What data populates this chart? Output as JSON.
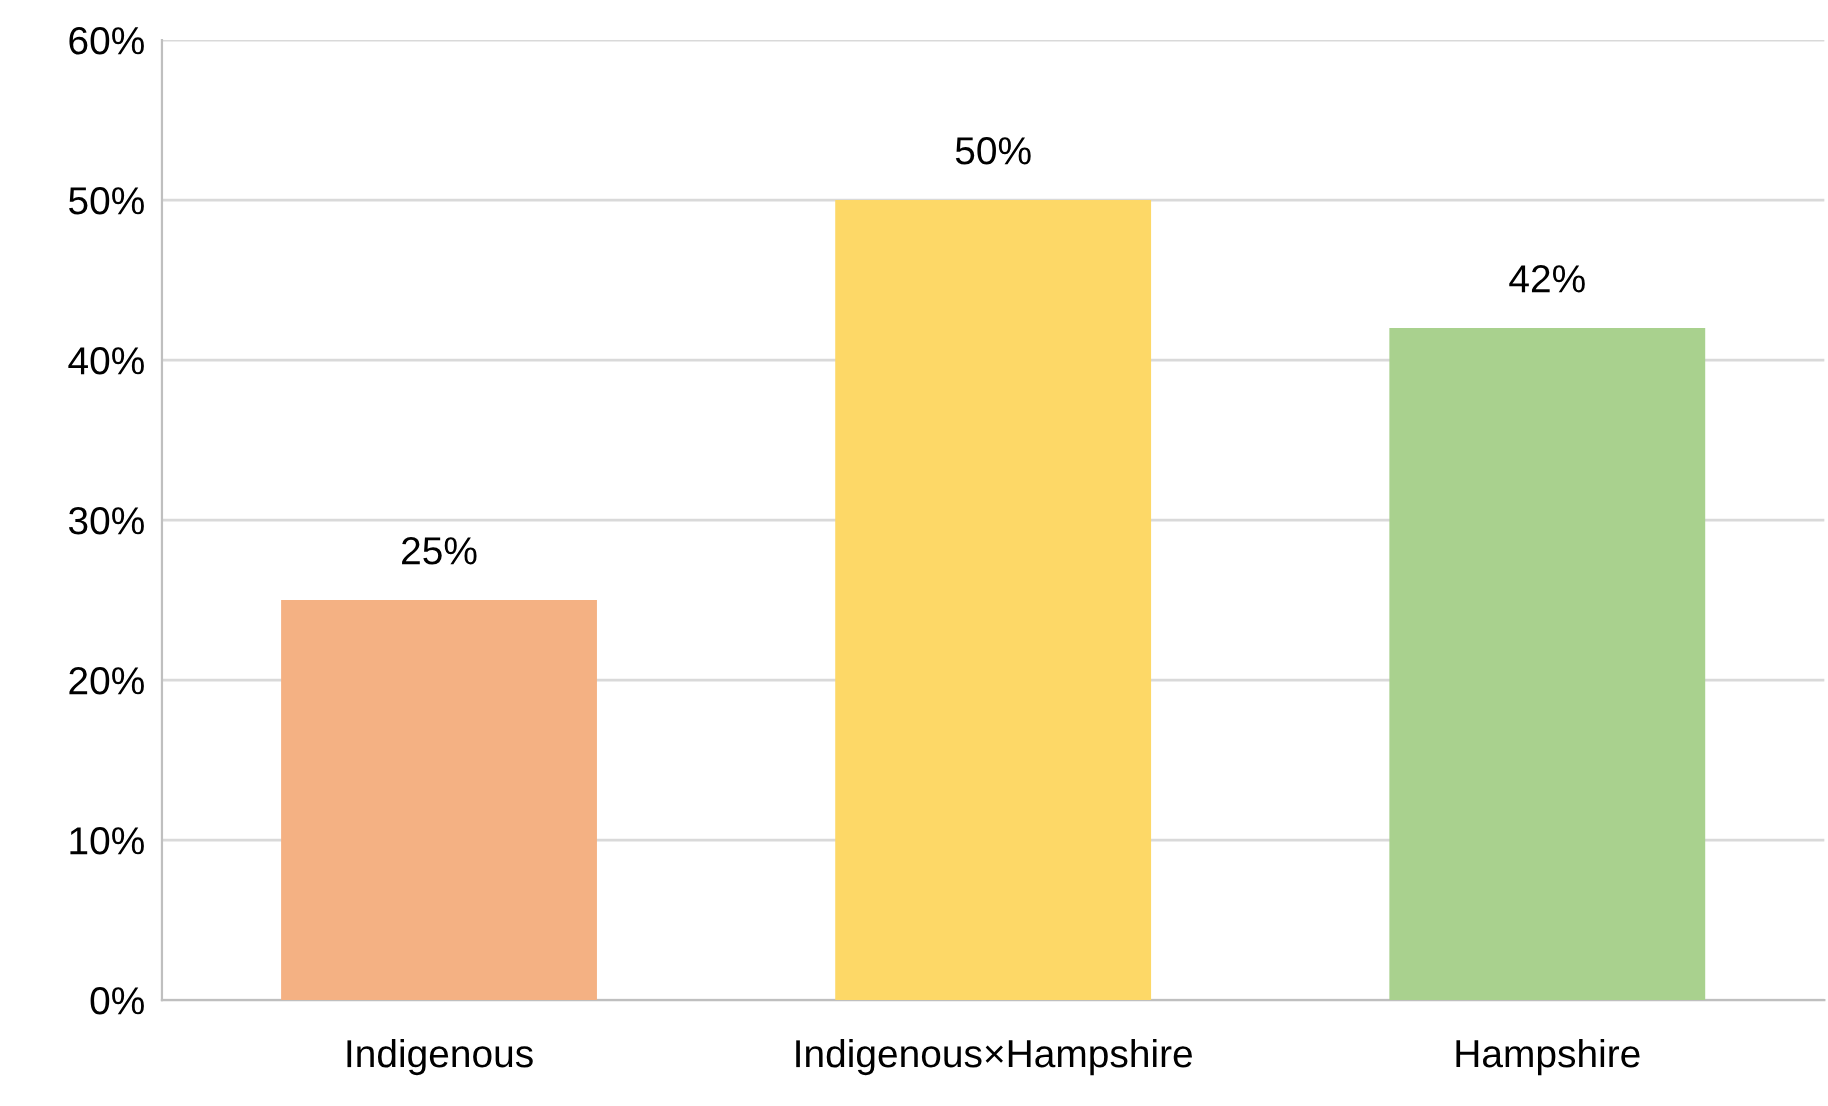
{
  "chart_data": {
    "type": "bar",
    "categories": [
      "Indigenous",
      "Indigenous×Hampshire",
      "Hampshire"
    ],
    "values": [
      25,
      50,
      42
    ],
    "colors": [
      "#f4b183",
      "#fdd867",
      "#a9d18e"
    ],
    "value_labels": [
      "25%",
      "50%",
      "42%"
    ],
    "ylim": [
      0,
      60
    ],
    "yticks": [
      {
        "value": 0,
        "label": "0%"
      },
      {
        "value": 10,
        "label": "10%"
      },
      {
        "value": 20,
        "label": "20%"
      },
      {
        "value": 30,
        "label": "30%"
      },
      {
        "value": 40,
        "label": "40%"
      },
      {
        "value": 50,
        "label": "50%"
      },
      {
        "value": 60,
        "label": "60%"
      }
    ],
    "grid": "y",
    "legend": false
  }
}
